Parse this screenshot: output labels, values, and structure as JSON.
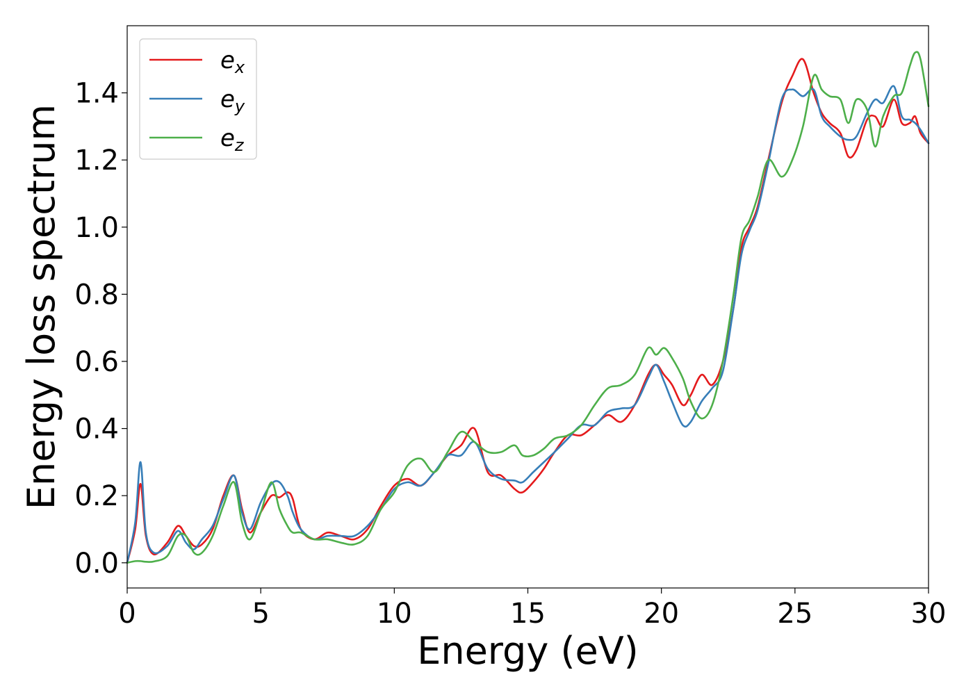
{
  "chart_data": {
    "type": "line",
    "title": "",
    "xlabel": "Energy (eV)",
    "ylabel": "Energy loss spectrum",
    "xlim": [
      0,
      30
    ],
    "ylim": [
      -0.075,
      1.6
    ],
    "xticks": [
      0,
      5,
      10,
      15,
      20,
      25,
      30
    ],
    "xtick_labels": [
      "0",
      "5",
      "10",
      "15",
      "20",
      "25",
      "30"
    ],
    "yticks": [
      0.0,
      0.2,
      0.4,
      0.6,
      0.8,
      1.0,
      1.2,
      1.4
    ],
    "ytick_labels": [
      "0.0",
      "0.2",
      "0.4",
      "0.6",
      "0.8",
      "1.0",
      "1.2",
      "1.4"
    ],
    "grid": false,
    "legend_position": "top-left",
    "series": [
      {
        "name": "e",
        "subscript": "x",
        "color": "#e41a1c",
        "x": [
          0,
          0.3,
          0.5,
          0.7,
          1.0,
          1.5,
          1.9,
          2.2,
          2.5,
          2.8,
          3.2,
          3.6,
          4.0,
          4.3,
          4.6,
          5.0,
          5.4,
          5.7,
          6.0,
          6.2,
          6.5,
          7.0,
          7.5,
          8.0,
          8.5,
          9.0,
          9.5,
          10.0,
          10.5,
          11.0,
          11.5,
          12.0,
          12.5,
          13.0,
          13.5,
          14.0,
          14.5,
          14.8,
          15.2,
          15.6,
          16.0,
          16.5,
          17.0,
          17.5,
          18.0,
          18.5,
          19.0,
          19.5,
          19.8,
          20.1,
          20.4,
          20.8,
          21.1,
          21.5,
          21.9,
          22.3,
          22.7,
          23.0,
          23.3,
          23.6,
          24.0,
          24.5,
          24.9,
          25.3,
          25.7,
          26.0,
          26.3,
          26.7,
          27.0,
          27.3,
          27.7,
          28.0,
          28.3,
          28.7,
          29.0,
          29.3,
          29.5,
          29.7,
          30.0
        ],
        "values": [
          0.0,
          0.1,
          0.235,
          0.08,
          0.025,
          0.06,
          0.11,
          0.08,
          0.05,
          0.055,
          0.1,
          0.2,
          0.26,
          0.16,
          0.09,
          0.15,
          0.2,
          0.195,
          0.21,
          0.19,
          0.1,
          0.07,
          0.09,
          0.08,
          0.07,
          0.1,
          0.17,
          0.23,
          0.25,
          0.23,
          0.27,
          0.32,
          0.35,
          0.4,
          0.27,
          0.26,
          0.22,
          0.21,
          0.24,
          0.28,
          0.33,
          0.38,
          0.38,
          0.41,
          0.44,
          0.42,
          0.47,
          0.56,
          0.59,
          0.56,
          0.53,
          0.47,
          0.5,
          0.56,
          0.53,
          0.6,
          0.76,
          0.94,
          1.0,
          1.06,
          1.2,
          1.37,
          1.45,
          1.5,
          1.4,
          1.34,
          1.31,
          1.28,
          1.21,
          1.23,
          1.32,
          1.33,
          1.3,
          1.38,
          1.31,
          1.31,
          1.33,
          1.28,
          1.25
        ]
      },
      {
        "name": "e",
        "subscript": "y",
        "color": "#377eb8",
        "x": [
          0,
          0.3,
          0.5,
          0.7,
          1.0,
          1.5,
          1.9,
          2.2,
          2.5,
          2.8,
          3.2,
          3.6,
          4.0,
          4.3,
          4.6,
          5.0,
          5.4,
          5.7,
          6.0,
          6.2,
          6.5,
          7.0,
          7.5,
          8.0,
          8.5,
          9.0,
          9.5,
          10.0,
          10.5,
          11.0,
          11.5,
          12.0,
          12.5,
          13.0,
          13.5,
          14.0,
          14.5,
          14.8,
          15.2,
          15.6,
          16.0,
          16.5,
          17.0,
          17.5,
          18.0,
          18.5,
          19.0,
          19.5,
          19.8,
          20.1,
          20.4,
          20.8,
          21.1,
          21.5,
          21.9,
          22.3,
          22.7,
          23.0,
          23.3,
          23.6,
          24.0,
          24.5,
          24.9,
          25.3,
          25.7,
          26.0,
          26.3,
          26.7,
          27.0,
          27.3,
          27.7,
          28.0,
          28.3,
          28.7,
          29.0,
          29.3,
          29.5,
          29.7,
          30.0
        ],
        "values": [
          0.0,
          0.12,
          0.3,
          0.09,
          0.03,
          0.05,
          0.095,
          0.06,
          0.04,
          0.07,
          0.11,
          0.19,
          0.26,
          0.15,
          0.1,
          0.18,
          0.235,
          0.24,
          0.2,
          0.15,
          0.1,
          0.07,
          0.08,
          0.08,
          0.08,
          0.11,
          0.16,
          0.22,
          0.24,
          0.23,
          0.27,
          0.32,
          0.32,
          0.36,
          0.28,
          0.25,
          0.245,
          0.24,
          0.27,
          0.3,
          0.33,
          0.37,
          0.41,
          0.41,
          0.45,
          0.46,
          0.47,
          0.55,
          0.59,
          0.54,
          0.48,
          0.41,
          0.42,
          0.48,
          0.52,
          0.57,
          0.76,
          0.92,
          0.99,
          1.05,
          1.19,
          1.38,
          1.41,
          1.39,
          1.41,
          1.33,
          1.3,
          1.27,
          1.26,
          1.27,
          1.34,
          1.38,
          1.37,
          1.42,
          1.33,
          1.32,
          1.31,
          1.29,
          1.25
        ]
      },
      {
        "name": "e",
        "subscript": "z",
        "color": "#4daf4a",
        "x": [
          0,
          0.3,
          0.5,
          0.7,
          1.0,
          1.5,
          1.9,
          2.2,
          2.5,
          2.8,
          3.2,
          3.6,
          4.0,
          4.3,
          4.6,
          5.0,
          5.4,
          5.7,
          6.0,
          6.2,
          6.5,
          7.0,
          7.5,
          8.0,
          8.5,
          9.0,
          9.5,
          10.0,
          10.5,
          11.0,
          11.5,
          12.0,
          12.5,
          13.0,
          13.5,
          14.0,
          14.5,
          14.8,
          15.2,
          15.6,
          16.0,
          16.5,
          17.0,
          17.5,
          18.0,
          18.5,
          19.0,
          19.5,
          19.8,
          20.1,
          20.4,
          20.8,
          21.1,
          21.5,
          21.9,
          22.3,
          22.7,
          23.0,
          23.3,
          23.6,
          24.0,
          24.5,
          24.9,
          25.3,
          25.7,
          26.0,
          26.3,
          26.7,
          27.0,
          27.3,
          27.7,
          28.0,
          28.3,
          28.7,
          29.0,
          29.3,
          29.5,
          29.7,
          30.0
        ],
        "values": [
          0.0,
          0.005,
          0.005,
          0.003,
          0.004,
          0.02,
          0.08,
          0.08,
          0.03,
          0.03,
          0.08,
          0.17,
          0.24,
          0.12,
          0.07,
          0.15,
          0.24,
          0.16,
          0.11,
          0.09,
          0.09,
          0.07,
          0.07,
          0.06,
          0.055,
          0.08,
          0.16,
          0.21,
          0.29,
          0.31,
          0.27,
          0.33,
          0.39,
          0.36,
          0.33,
          0.33,
          0.35,
          0.32,
          0.32,
          0.34,
          0.37,
          0.38,
          0.41,
          0.47,
          0.52,
          0.53,
          0.56,
          0.64,
          0.62,
          0.64,
          0.61,
          0.55,
          0.48,
          0.43,
          0.47,
          0.6,
          0.8,
          0.97,
          1.02,
          1.09,
          1.2,
          1.15,
          1.2,
          1.3,
          1.45,
          1.41,
          1.39,
          1.38,
          1.31,
          1.38,
          1.35,
          1.24,
          1.33,
          1.39,
          1.4,
          1.48,
          1.52,
          1.5,
          1.36
        ]
      }
    ]
  }
}
